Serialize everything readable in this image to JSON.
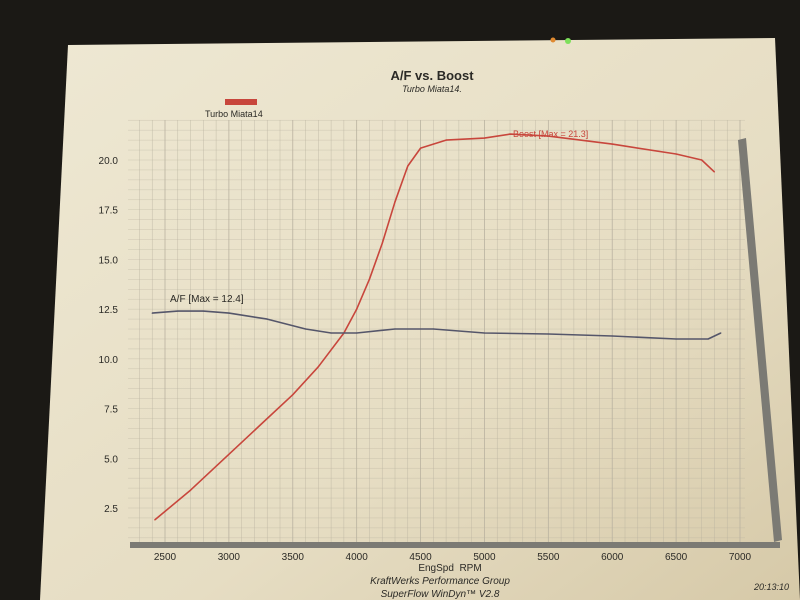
{
  "chart_data": {
    "type": "line",
    "title": "A/F vs. Boost",
    "subtitle": "Turbo Miata14.",
    "legend": {
      "entries": [
        "Turbo Miata14"
      ],
      "placement": "top-left",
      "color": "#c8463c"
    },
    "xlabel": "EngSpd  RPM",
    "ylabel": "",
    "xlim": [
      2300,
      7200
    ],
    "ylim": [
      0,
      22
    ],
    "x_ticks": [
      "2500",
      "3000",
      "3500",
      "4000",
      "4500",
      "5000",
      "5500",
      "6000",
      "6500",
      "7000"
    ],
    "y_ticks": [
      "2.5",
      "5.0",
      "7.5",
      "10.0",
      "12.5",
      "15.0",
      "17.5",
      "20.0"
    ],
    "grid": true,
    "series": [
      {
        "name": "Boost",
        "label": "Boost  [Max = 21.3]",
        "color": "#c8463c",
        "x": [
          2420,
          2700,
          3000,
          3250,
          3500,
          3700,
          3900,
          4000,
          4100,
          4200,
          4300,
          4400,
          4500,
          4700,
          5000,
          5200,
          5500,
          6000,
          6500,
          6700,
          6800
        ],
        "y": [
          1.9,
          3.4,
          5.2,
          6.7,
          8.2,
          9.6,
          11.3,
          12.5,
          14.0,
          15.8,
          17.9,
          19.7,
          20.6,
          21.0,
          21.1,
          21.3,
          21.2,
          20.8,
          20.3,
          20.0,
          19.4
        ]
      },
      {
        "name": "A/F",
        "label": "A/F  [Max = 12.4]",
        "color": "#55566a",
        "x": [
          2400,
          2600,
          2800,
          3000,
          3300,
          3600,
          3800,
          4000,
          4300,
          4600,
          5000,
          5500,
          6000,
          6500,
          6750,
          6850
        ],
        "y": [
          12.3,
          12.4,
          12.4,
          12.3,
          12.0,
          11.5,
          11.3,
          11.3,
          11.5,
          11.5,
          11.3,
          11.25,
          11.15,
          11.0,
          11.0,
          11.3
        ]
      }
    ]
  },
  "footer": {
    "company": "KraftWerks Performance Group",
    "software": "SuperFlow WinDyn™ V2.8",
    "time": "20:13:10"
  },
  "colors": {
    "paper": "#e9e1c9",
    "grid": "#b9b2a0",
    "axis": "#6b6a64"
  }
}
